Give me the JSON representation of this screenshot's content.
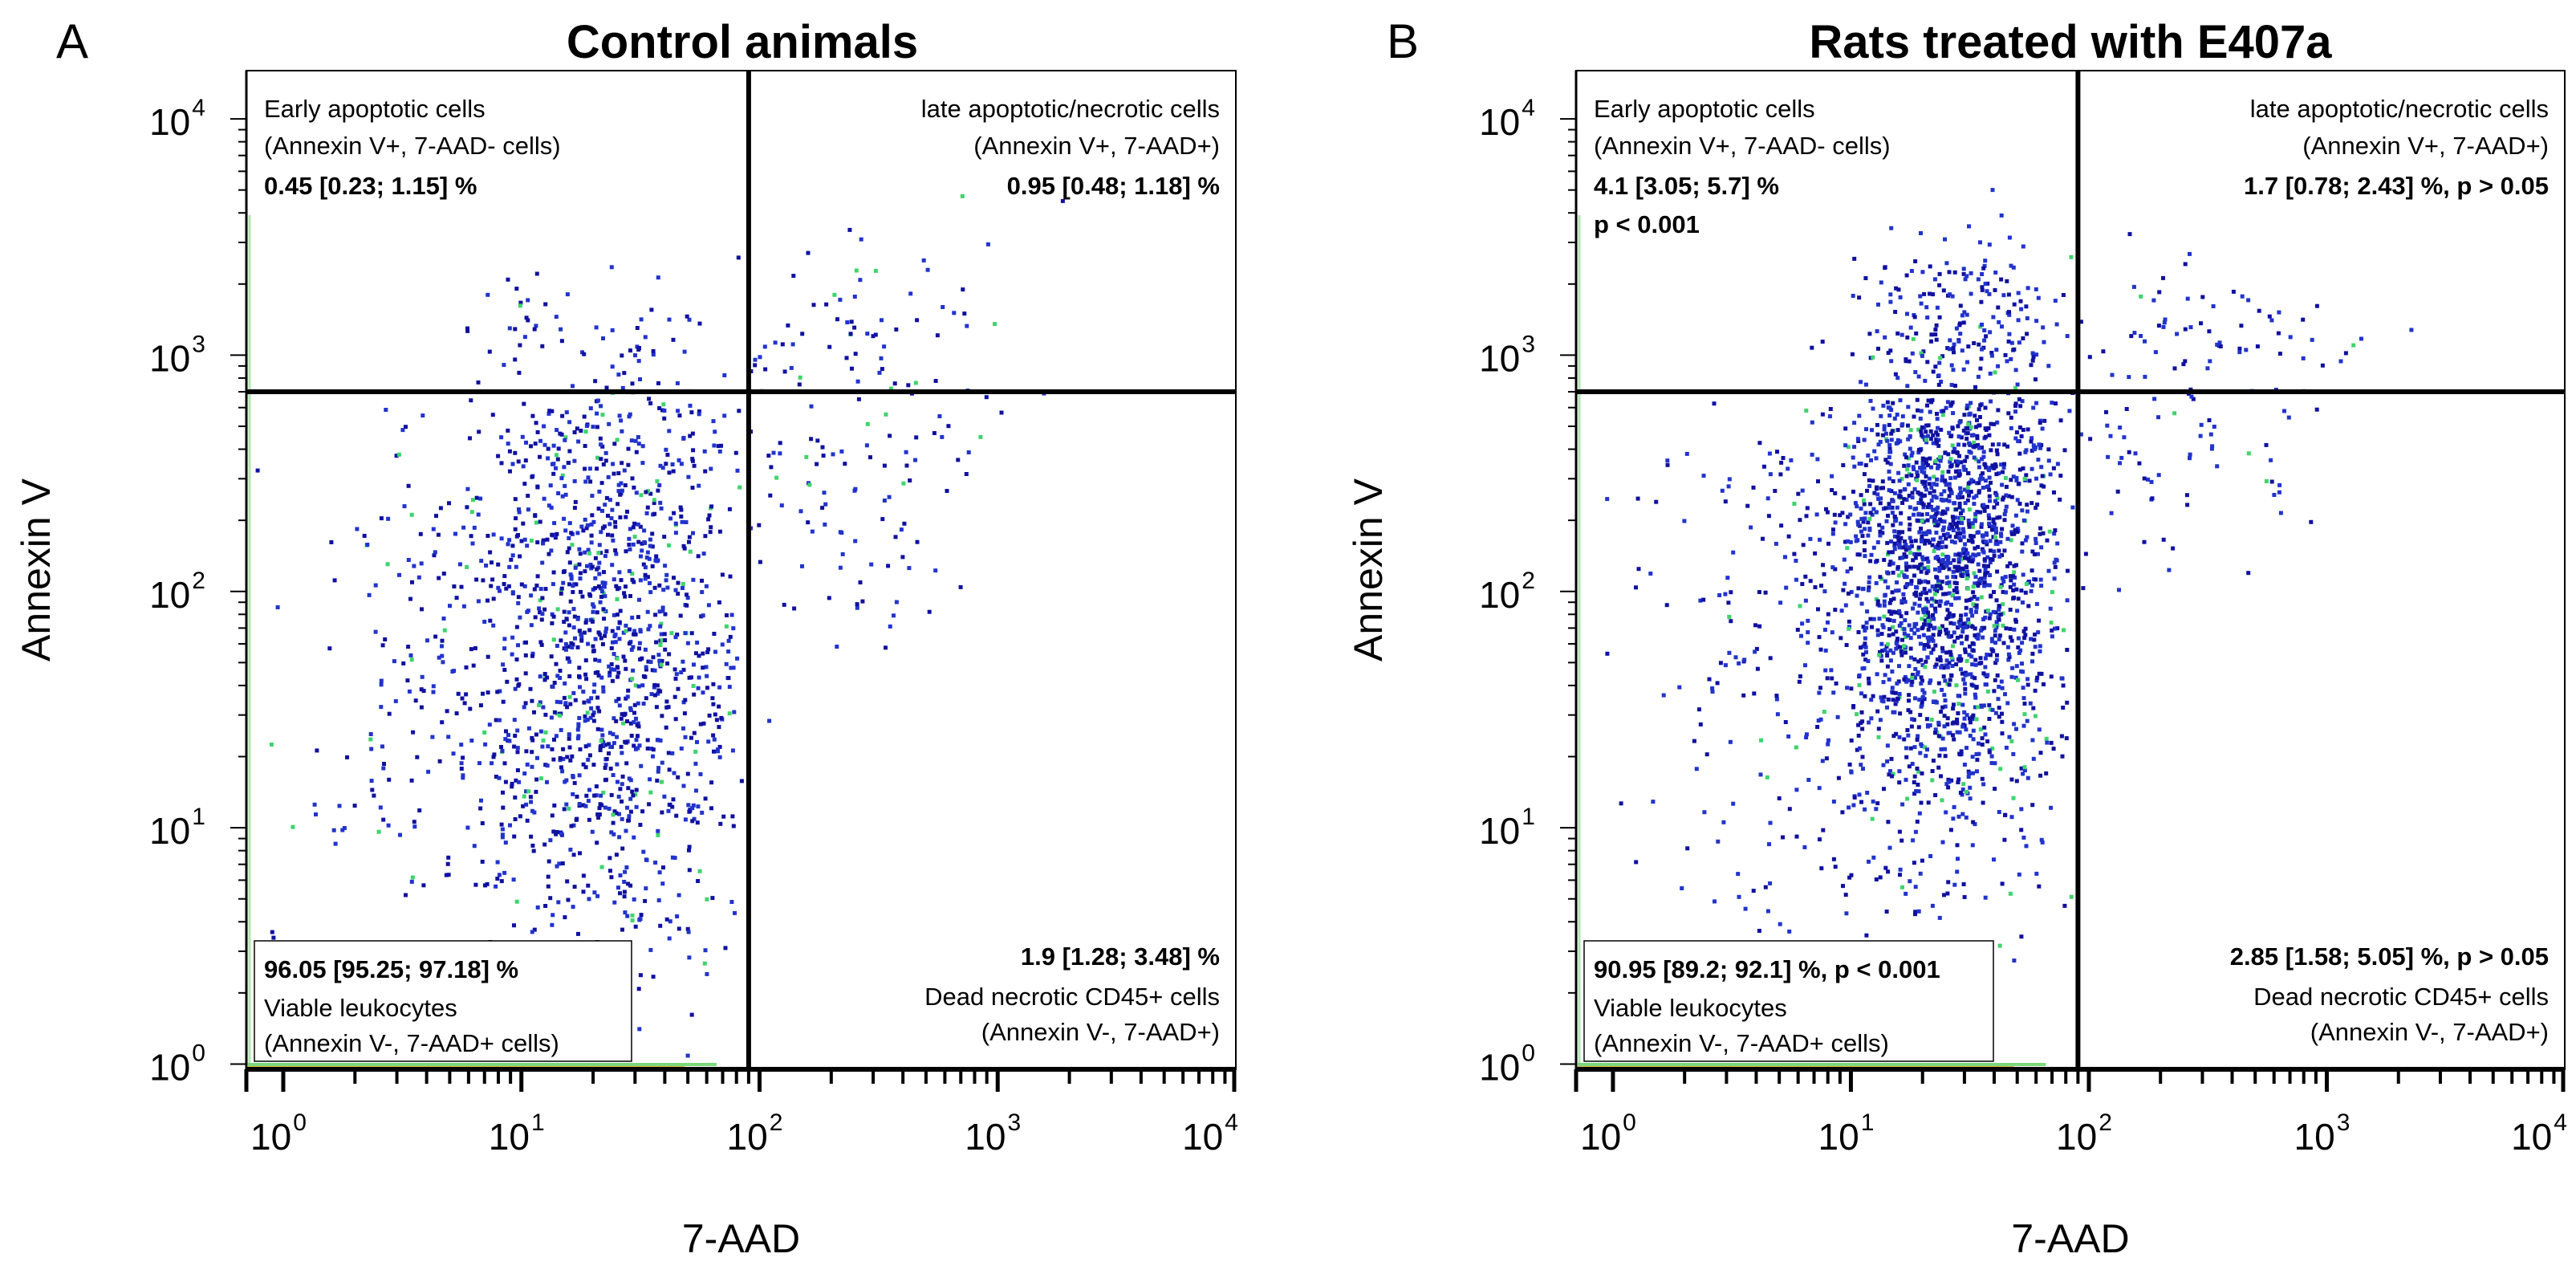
{
  "chart_data": [
    {
      "type": "scatter",
      "panel_letter": "A",
      "title": "Control animals",
      "xlabel": "7-AAD",
      "ylabel": "Annexin V",
      "x_scale": "log",
      "y_scale": "log",
      "xlim": [
        0.7,
        10000
      ],
      "ylim": [
        0.95,
        16000
      ],
      "x_ticks": [
        {
          "base": "10",
          "exp": "0",
          "value": 1
        },
        {
          "base": "10",
          "exp": "1",
          "value": 10
        },
        {
          "base": "10",
          "exp": "2",
          "value": 100
        },
        {
          "base": "10",
          "exp": "3",
          "value": 1000
        },
        {
          "base": "10",
          "exp": "4",
          "value": 10000
        }
      ],
      "y_ticks": [
        {
          "base": "10",
          "exp": "0",
          "value": 1
        },
        {
          "base": "10",
          "exp": "1",
          "value": 10
        },
        {
          "base": "10",
          "exp": "2",
          "value": 100
        },
        {
          "base": "10",
          "exp": "3",
          "value": 1000
        },
        {
          "base": "10",
          "exp": "4",
          "value": 10000
        }
      ],
      "gate": {
        "x": 90,
        "y": 700
      },
      "quadrants": {
        "early_apoptotic": {
          "line1": "Early apoptotic cells",
          "line2": "(Annexin V+, 7-AAD- cells)",
          "stat": "0.45 [0.23; 1.15] %",
          "stat2": ""
        },
        "late_apoptotic": {
          "line1": "late apoptotic/necrotic cells",
          "line2": "(Annexin V+, 7-AAD+)",
          "stat": "0.95 [0.48; 1.18] %"
        },
        "viable": {
          "stat": "96.05 [95.25; 97.18] %",
          "line1": "Viable leukocytes",
          "line2": "(Annexin V-, 7-AAD+ cells)"
        },
        "dead_necrotic": {
          "stat": "1.9 [1.28; 3.48] %",
          "line1": "Dead necrotic CD45+ cells",
          "line2": "(Annexin V-, 7-AAD+)"
        }
      },
      "event_clusters": [
        {
          "region": "viable",
          "n": 1250,
          "x_log_center": 1.35,
          "x_log_sd": 0.28,
          "y_log_center": 1.75,
          "y_log_sd": 0.65
        },
        {
          "region": "viable-spread",
          "n": 260,
          "x_log_center": 0.75,
          "x_log_sd": 0.4,
          "y_log_center": 1.55,
          "y_log_sd": 0.7
        },
        {
          "region": "early_apoptotic",
          "n": 70,
          "x_log_center": 1.3,
          "x_log_sd": 0.3,
          "y_log_center": 3.05,
          "y_log_sd": 0.15
        },
        {
          "region": "late_apoptotic",
          "n": 70,
          "x_log_center": 2.4,
          "x_log_sd": 0.35,
          "y_log_center": 3.05,
          "y_log_sd": 0.25
        },
        {
          "region": "dead_necrotic",
          "n": 90,
          "x_log_center": 2.3,
          "x_log_sd": 0.3,
          "y_log_center": 2.55,
          "y_log_sd": 0.45
        }
      ]
    },
    {
      "type": "scatter",
      "panel_letter": "B",
      "title": "Rats treated with E407a",
      "xlabel": "7-AAD",
      "ylabel": "Annexin V",
      "x_scale": "log",
      "y_scale": "log",
      "xlim": [
        0.7,
        10000
      ],
      "ylim": [
        0.95,
        16000
      ],
      "x_ticks": [
        {
          "base": "10",
          "exp": "0",
          "value": 1
        },
        {
          "base": "10",
          "exp": "1",
          "value": 10
        },
        {
          "base": "10",
          "exp": "2",
          "value": 100
        },
        {
          "base": "10",
          "exp": "3",
          "value": 1000
        },
        {
          "base": "10",
          "exp": "4",
          "value": 10000
        }
      ],
      "y_ticks": [
        {
          "base": "10",
          "exp": "0",
          "value": 1
        },
        {
          "base": "10",
          "exp": "1",
          "value": 10
        },
        {
          "base": "10",
          "exp": "2",
          "value": 100
        },
        {
          "base": "10",
          "exp": "3",
          "value": 1000
        },
        {
          "base": "10",
          "exp": "4",
          "value": 10000
        }
      ],
      "gate": {
        "x": 90,
        "y": 700
      },
      "quadrants": {
        "early_apoptotic": {
          "line1": "Early apoptotic cells",
          "line2": "(Annexin V+, 7-AAD- cells)",
          "stat": "4.1 [3.05; 5.7] %",
          "stat2": "p < 0.001"
        },
        "late_apoptotic": {
          "line1": "late apoptotic/necrotic cells",
          "line2": "(Annexin V+, 7-AAD+)",
          "stat": "1.7 [0.78; 2.43] %, p > 0.05"
        },
        "viable": {
          "stat": "90.95 [89.2; 92.1] %, p < 0.001",
          "line1": "Viable leukocytes",
          "line2": "(Annexin V-, 7-AAD+ cells)"
        },
        "dead_necrotic": {
          "stat": "2.85 [1.58; 5.05] %, p > 0.05",
          "line1": "Dead necrotic CD45+ cells",
          "line2": "(Annexin V-, 7-AAD+)"
        }
      },
      "event_clusters": [
        {
          "region": "viable",
          "n": 1900,
          "x_log_center": 1.4,
          "x_log_sd": 0.22,
          "y_log_center": 2.1,
          "y_log_sd": 0.55
        },
        {
          "region": "viable-spread",
          "n": 320,
          "x_log_center": 0.9,
          "x_log_sd": 0.35,
          "y_log_center": 1.8,
          "y_log_sd": 0.7
        },
        {
          "region": "early_apoptotic",
          "n": 220,
          "x_log_center": 1.45,
          "x_log_sd": 0.22,
          "y_log_center": 3.1,
          "y_log_sd": 0.2
        },
        {
          "region": "late_apoptotic",
          "n": 70,
          "x_log_center": 2.5,
          "x_log_sd": 0.4,
          "y_log_center": 3.0,
          "y_log_sd": 0.2
        },
        {
          "region": "dead_necrotic",
          "n": 60,
          "x_log_center": 2.4,
          "x_log_sd": 0.35,
          "y_log_center": 2.6,
          "y_log_sd": 0.25
        }
      ]
    }
  ]
}
